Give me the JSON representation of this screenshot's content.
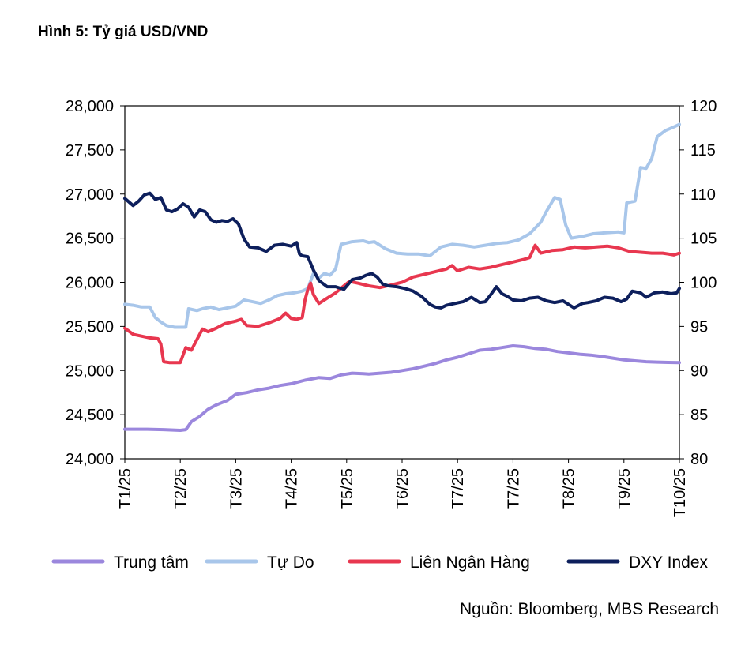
{
  "figure": {
    "label": "Hình 5:",
    "title": "Tỷ giá USD/VND",
    "source": "Nguồn: Bloomberg, MBS Research"
  },
  "chart_data": {
    "type": "line",
    "title": "Tỷ giá USD/VND",
    "categories": [
      "T1/25",
      "T2/25",
      "T3/25",
      "T4/25",
      "T5/25",
      "T6/25",
      "T7/25",
      "T7/25",
      "T8/25",
      "T9/25",
      "T10/25"
    ],
    "x_index_range": [
      0,
      200
    ],
    "left_axis": {
      "ylim": [
        24000,
        28000
      ],
      "ticks": [
        24000,
        24500,
        25000,
        25500,
        26000,
        26500,
        27000,
        27500,
        28000
      ],
      "tick_labels": [
        "24,000",
        "24,500",
        "25,000",
        "25,500",
        "26,000",
        "26,500",
        "27,000",
        "27,500",
        "28,000"
      ]
    },
    "right_axis": {
      "ylim": [
        80,
        120
      ],
      "ticks": [
        80,
        85,
        90,
        95,
        100,
        105,
        110,
        115,
        120
      ],
      "tick_labels": [
        "80",
        "85",
        "90",
        "95",
        "100",
        "105",
        "110",
        "115",
        "120"
      ]
    },
    "series": [
      {
        "name": "Trung tâm",
        "axis": "left",
        "color": "#9b87dd",
        "points": [
          [
            0,
            24335
          ],
          [
            8,
            24335
          ],
          [
            14,
            24330
          ],
          [
            20,
            24322
          ],
          [
            22,
            24330
          ],
          [
            24,
            24420
          ],
          [
            27,
            24480
          ],
          [
            30,
            24560
          ],
          [
            33,
            24610
          ],
          [
            37,
            24660
          ],
          [
            40,
            24730
          ],
          [
            44,
            24750
          ],
          [
            48,
            24780
          ],
          [
            52,
            24800
          ],
          [
            56,
            24830
          ],
          [
            60,
            24850
          ],
          [
            65,
            24890
          ],
          [
            70,
            24920
          ],
          [
            74,
            24910
          ],
          [
            78,
            24950
          ],
          [
            82,
            24970
          ],
          [
            86,
            24965
          ],
          [
            88,
            24960
          ],
          [
            92,
            24970
          ],
          [
            96,
            24980
          ],
          [
            100,
            25000
          ],
          [
            104,
            25020
          ],
          [
            108,
            25050
          ],
          [
            112,
            25080
          ],
          [
            116,
            25120
          ],
          [
            120,
            25150
          ],
          [
            124,
            25190
          ],
          [
            128,
            25230
          ],
          [
            132,
            25240
          ],
          [
            136,
            25260
          ],
          [
            140,
            25280
          ],
          [
            144,
            25270
          ],
          [
            148,
            25250
          ],
          [
            152,
            25240
          ],
          [
            156,
            25215
          ],
          [
            160,
            25200
          ],
          [
            164,
            25185
          ],
          [
            168,
            25175
          ],
          [
            172,
            25160
          ],
          [
            176,
            25140
          ],
          [
            180,
            25120
          ],
          [
            184,
            25110
          ],
          [
            188,
            25100
          ],
          [
            192,
            25095
          ],
          [
            196,
            25092
          ],
          [
            200,
            25090
          ]
        ]
      },
      {
        "name": "Tự Do",
        "axis": "left",
        "color": "#a8c6ea",
        "points": [
          [
            0,
            25750
          ],
          [
            3,
            25740
          ],
          [
            6,
            25720
          ],
          [
            9,
            25720
          ],
          [
            11,
            25600
          ],
          [
            13,
            25550
          ],
          [
            15,
            25510
          ],
          [
            18,
            25490
          ],
          [
            22,
            25490
          ],
          [
            23,
            25700
          ],
          [
            26,
            25680
          ],
          [
            28,
            25700
          ],
          [
            31,
            25720
          ],
          [
            34,
            25690
          ],
          [
            37,
            25710
          ],
          [
            40,
            25730
          ],
          [
            43,
            25800
          ],
          [
            46,
            25780
          ],
          [
            49,
            25760
          ],
          [
            52,
            25800
          ],
          [
            55,
            25850
          ],
          [
            58,
            25870
          ],
          [
            61,
            25880
          ],
          [
            64,
            25900
          ],
          [
            66,
            25930
          ],
          [
            68,
            26100
          ],
          [
            70,
            26050
          ],
          [
            72,
            26100
          ],
          [
            74,
            26080
          ],
          [
            76,
            26150
          ],
          [
            78,
            26430
          ],
          [
            82,
            26460
          ],
          [
            86,
            26470
          ],
          [
            88,
            26450
          ],
          [
            90,
            26460
          ],
          [
            92,
            26420
          ],
          [
            94,
            26380
          ],
          [
            98,
            26330
          ],
          [
            102,
            26320
          ],
          [
            106,
            26320
          ],
          [
            110,
            26300
          ],
          [
            114,
            26400
          ],
          [
            118,
            26430
          ],
          [
            122,
            26420
          ],
          [
            126,
            26400
          ],
          [
            130,
            26420
          ],
          [
            134,
            26440
          ],
          [
            138,
            26450
          ],
          [
            142,
            26480
          ],
          [
            146,
            26550
          ],
          [
            150,
            26680
          ],
          [
            152,
            26800
          ],
          [
            155,
            26960
          ],
          [
            157,
            26940
          ],
          [
            159,
            26650
          ],
          [
            161,
            26500
          ],
          [
            165,
            26520
          ],
          [
            169,
            26550
          ],
          [
            173,
            26560
          ],
          [
            178,
            26570
          ],
          [
            180,
            26560
          ],
          [
            181,
            26900
          ],
          [
            184,
            26920
          ],
          [
            186,
            27300
          ],
          [
            188,
            27290
          ],
          [
            190,
            27400
          ],
          [
            192,
            27650
          ],
          [
            195,
            27720
          ],
          [
            198,
            27760
          ],
          [
            200,
            27790
          ]
        ]
      },
      {
        "name": "Liên Ngân Hàng",
        "axis": "left",
        "color": "#e8374f",
        "points": [
          [
            0,
            25480
          ],
          [
            3,
            25410
          ],
          [
            6,
            25390
          ],
          [
            9,
            25370
          ],
          [
            12,
            25360
          ],
          [
            13,
            25300
          ],
          [
            14,
            25100
          ],
          [
            16,
            25090
          ],
          [
            20,
            25090
          ],
          [
            22,
            25260
          ],
          [
            24,
            25230
          ],
          [
            26,
            25350
          ],
          [
            28,
            25470
          ],
          [
            30,
            25440
          ],
          [
            33,
            25480
          ],
          [
            36,
            25530
          ],
          [
            40,
            25560
          ],
          [
            42,
            25580
          ],
          [
            44,
            25510
          ],
          [
            48,
            25500
          ],
          [
            52,
            25540
          ],
          [
            56,
            25590
          ],
          [
            58,
            25650
          ],
          [
            60,
            25590
          ],
          [
            62,
            25580
          ],
          [
            64,
            25600
          ],
          [
            65,
            25800
          ],
          [
            66,
            25920
          ],
          [
            67,
            25990
          ],
          [
            68,
            25860
          ],
          [
            70,
            25760
          ],
          [
            73,
            25820
          ],
          [
            76,
            25880
          ],
          [
            79,
            25960
          ],
          [
            81,
            26010
          ],
          [
            84,
            25990
          ],
          [
            88,
            25960
          ],
          [
            92,
            25940
          ],
          [
            96,
            25970
          ],
          [
            100,
            26000
          ],
          [
            104,
            26060
          ],
          [
            108,
            26090
          ],
          [
            112,
            26120
          ],
          [
            116,
            26150
          ],
          [
            118,
            26190
          ],
          [
            120,
            26130
          ],
          [
            124,
            26170
          ],
          [
            128,
            26150
          ],
          [
            132,
            26170
          ],
          [
            136,
            26200
          ],
          [
            140,
            26230
          ],
          [
            144,
            26260
          ],
          [
            146,
            26280
          ],
          [
            148,
            26420
          ],
          [
            150,
            26330
          ],
          [
            154,
            26360
          ],
          [
            158,
            26370
          ],
          [
            162,
            26400
          ],
          [
            166,
            26390
          ],
          [
            170,
            26400
          ],
          [
            174,
            26410
          ],
          [
            178,
            26390
          ],
          [
            182,
            26350
          ],
          [
            186,
            26340
          ],
          [
            190,
            26330
          ],
          [
            194,
            26330
          ],
          [
            196,
            26320
          ],
          [
            198,
            26310
          ],
          [
            200,
            26330
          ]
        ]
      },
      {
        "name": "DXY Index",
        "axis": "right",
        "color": "#0d1f5c",
        "points": [
          [
            0,
            109.5
          ],
          [
            3,
            108.7
          ],
          [
            5,
            109.2
          ],
          [
            7,
            109.9
          ],
          [
            9,
            110.1
          ],
          [
            11,
            109.4
          ],
          [
            13,
            109.6
          ],
          [
            15,
            108.2
          ],
          [
            17,
            108.0
          ],
          [
            19,
            108.3
          ],
          [
            21,
            108.9
          ],
          [
            23,
            108.5
          ],
          [
            25,
            107.4
          ],
          [
            27,
            108.2
          ],
          [
            29,
            108.0
          ],
          [
            31,
            107.1
          ],
          [
            33,
            106.8
          ],
          [
            35,
            107.0
          ],
          [
            37,
            106.9
          ],
          [
            39,
            107.2
          ],
          [
            41,
            106.6
          ],
          [
            43,
            104.9
          ],
          [
            45,
            104.0
          ],
          [
            48,
            103.9
          ],
          [
            51,
            103.5
          ],
          [
            54,
            104.2
          ],
          [
            57,
            104.3
          ],
          [
            60,
            104.1
          ],
          [
            62,
            104.5
          ],
          [
            63,
            103.2
          ],
          [
            64,
            103.0
          ],
          [
            66,
            102.9
          ],
          [
            68,
            101.4
          ],
          [
            70,
            100.2
          ],
          [
            73,
            99.5
          ],
          [
            76,
            99.5
          ],
          [
            79,
            99.2
          ],
          [
            82,
            100.3
          ],
          [
            85,
            100.5
          ],
          [
            87,
            100.8
          ],
          [
            89,
            101.0
          ],
          [
            91,
            100.6
          ],
          [
            93,
            99.8
          ],
          [
            95,
            99.6
          ],
          [
            98,
            99.5
          ],
          [
            101,
            99.3
          ],
          [
            104,
            99.0
          ],
          [
            107,
            98.4
          ],
          [
            110,
            97.5
          ],
          [
            112,
            97.2
          ],
          [
            114,
            97.1
          ],
          [
            116,
            97.4
          ],
          [
            119,
            97.6
          ],
          [
            122,
            97.8
          ],
          [
            125,
            98.3
          ],
          [
            128,
            97.7
          ],
          [
            130,
            97.8
          ],
          [
            132,
            98.6
          ],
          [
            134,
            99.5
          ],
          [
            136,
            98.7
          ],
          [
            138,
            98.4
          ],
          [
            140,
            98.0
          ],
          [
            143,
            97.9
          ],
          [
            146,
            98.2
          ],
          [
            149,
            98.3
          ],
          [
            152,
            97.9
          ],
          [
            155,
            97.7
          ],
          [
            158,
            97.9
          ],
          [
            160,
            97.5
          ],
          [
            162,
            97.1
          ],
          [
            165,
            97.6
          ],
          [
            167,
            97.7
          ],
          [
            170,
            97.9
          ],
          [
            173,
            98.3
          ],
          [
            176,
            98.2
          ],
          [
            179,
            97.8
          ],
          [
            181,
            98.1
          ],
          [
            183,
            99.0
          ],
          [
            186,
            98.8
          ],
          [
            188,
            98.3
          ],
          [
            191,
            98.8
          ],
          [
            194,
            98.9
          ],
          [
            197,
            98.7
          ],
          [
            199,
            98.8
          ],
          [
            200,
            99.3
          ]
        ]
      }
    ]
  }
}
